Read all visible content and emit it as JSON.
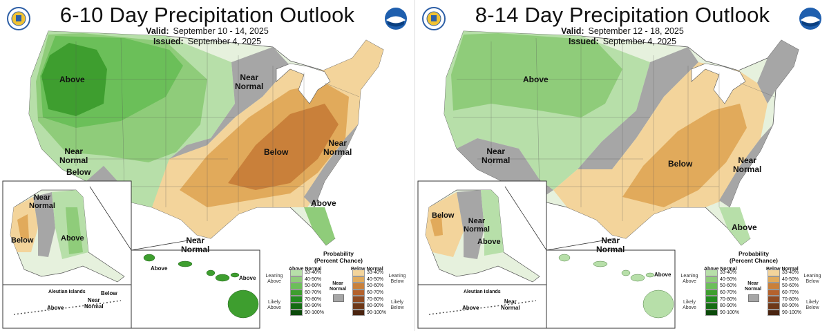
{
  "colors": {
    "above": [
      "#b7dfa9",
      "#8fcc7a",
      "#6bbf59",
      "#3e9e2f",
      "#238b20",
      "#156b13",
      "#0b4a0a"
    ],
    "below": [
      "#f3d49b",
      "#e1aa5b",
      "#c9803a",
      "#b4622d",
      "#8e4a22",
      "#6e3818",
      "#4a2410"
    ],
    "near": "#a6a6a6",
    "land_outline": "#555555",
    "water": "#ffffff"
  },
  "panels": [
    {
      "title": "6-10 Day Precipitation Outlook",
      "valid_label": "Valid:",
      "valid_value": "September 10 - 14, 2025",
      "issued_label": "Issued:",
      "issued_value": "September 4, 2025",
      "map_labels": {
        "northwest": "Above",
        "upper_midwest": "Near\nNormal",
        "southwest_near": "Near\nNormal",
        "southwest_below": "Below",
        "tennessee": "Below",
        "virginia": "Near\nNormal",
        "florida": "Above",
        "gulf": "Near\nNormal",
        "alaska_near": "Near\nNormal",
        "alaska_west": "Below",
        "alaska_se": "Above",
        "aleutian_title": "Aleutian Islands",
        "aleutian_above": "Above",
        "aleutian_near": "Near\nNormal",
        "aleutian_below": "Below",
        "hawaii_above_w": "Above",
        "hawaii_above_e": "Above"
      }
    },
    {
      "title": "8-14 Day Precipitation Outlook",
      "valid_label": "Valid:",
      "valid_value": "September 12 - 18, 2025",
      "issued_label": "Issued:",
      "issued_value": "September 4, 2025",
      "map_labels": {
        "northwest": "Above",
        "southwest_near": "Near\nNormal",
        "tennessee": "Below",
        "virginia": "Near\nNormal",
        "florida": "Above",
        "gulf": "Near\nNormal",
        "alaska_west": "Below",
        "alaska_near": "Near\nNormal",
        "alaska_se": "Above",
        "aleutian_title": "Aleutian Islands",
        "aleutian_above": "Above",
        "aleutian_near": "Near\nNormal",
        "hawaii_above": "Above"
      }
    }
  ],
  "legend": {
    "title": "Probability\n(Percent Chance)",
    "above_header": "Above Normal",
    "below_header": "Below Normal",
    "near_label": "Near\nNormal",
    "bins": [
      "33-40%",
      "40-50%",
      "50-60%",
      "60-70%",
      "70-80%",
      "80-90%",
      "90-100%"
    ],
    "leaning_above": "Leaning\nAbove",
    "likely_above": "Likely\nAbove",
    "leaning_below": "Leaning\nBelow",
    "likely_below": "Likely\nBelow"
  }
}
